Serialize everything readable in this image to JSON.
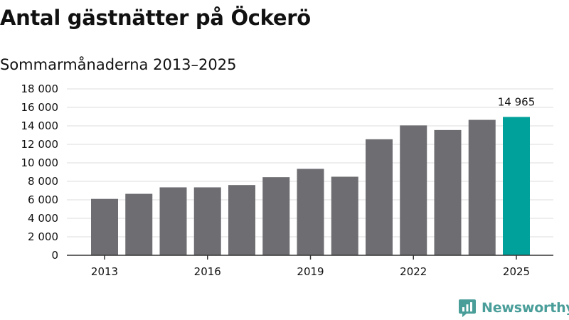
{
  "title": "Antal gästnätter på Öckerö",
  "subtitle": "Sommarmånaderna 2013–2025",
  "brand": "Newsworthy",
  "colors": {
    "bar": "#6e6d72",
    "highlight": "#00a19a",
    "grid": "#dddddd",
    "text": "#111111",
    "brand": "#4a9e9a"
  },
  "chart_data": {
    "type": "bar",
    "x": [
      2013,
      2014,
      2015,
      2016,
      2017,
      2018,
      2019,
      2020,
      2021,
      2022,
      2023,
      2024,
      2025
    ],
    "values": [
      6100,
      6650,
      7350,
      7350,
      7600,
      8450,
      9350,
      8500,
      12550,
      14050,
      13550,
      14650,
      14965
    ],
    "highlight_index": 12,
    "highlight_label": "14 965",
    "ylim": [
      0,
      18000
    ],
    "yticks": [
      0,
      2000,
      4000,
      6000,
      8000,
      10000,
      12000,
      14000,
      16000,
      18000
    ],
    "ytick_labels": [
      "0",
      "2 000",
      "4 000",
      "6 000",
      "8 000",
      "10 000",
      "12 000",
      "14 000",
      "16 000",
      "18 000"
    ],
    "xtick_labels": [
      "2013",
      "2016",
      "2019",
      "2022",
      "2025"
    ],
    "grid": true
  }
}
